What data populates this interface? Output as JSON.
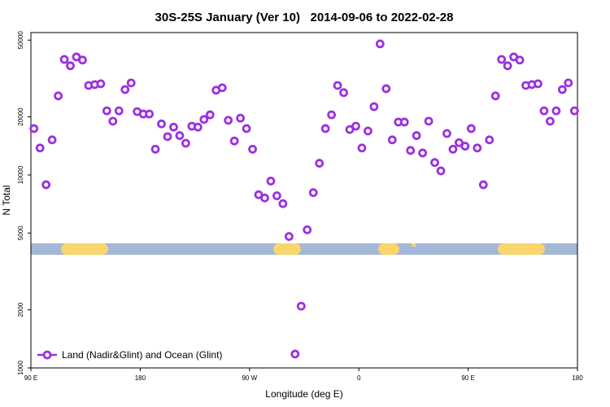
{
  "chart_data": {
    "type": "scatter",
    "title": "30S-25S January (Ver 10)   2014-09-06 to 2022-02-28",
    "xlabel": "Longitude (deg E)",
    "ylabel": "N Total",
    "ylog": true,
    "legend": "lower left",
    "xlim": [
      90,
      540
    ],
    "ylim": [
      1000,
      54700
    ],
    "xticks": [
      {
        "value": 90,
        "label": "90 E"
      },
      {
        "value": 180,
        "label": "180"
      },
      {
        "value": 270,
        "label": "90 W"
      },
      {
        "value": 360,
        "label": "0"
      },
      {
        "value": 450,
        "label": "90 E"
      },
      {
        "value": 540,
        "label": "180"
      }
    ],
    "yticks": [
      1000,
      2000,
      5000,
      10000,
      20000,
      50000
    ],
    "series": [
      {
        "name": "Land (Nadir&Glint) and Ocean (Glint)",
        "color": "#9b30e0",
        "x": [
          92.5,
          97.5,
          102.5,
          107.5,
          112.5,
          117.5,
          122.5,
          127.5,
          132.5,
          137.5,
          142.5,
          147.5,
          152.5,
          157.5,
          162.5,
          167.5,
          172.5,
          177.5,
          182.5,
          187.5,
          192.5,
          197.5,
          202.5,
          207.5,
          212.5,
          217.5,
          222.5,
          227.5,
          232.5,
          237.5,
          242.5,
          247.5,
          252.5,
          257.5,
          262.5,
          267.5,
          272.5,
          277.5,
          282.5,
          287.5,
          292.5,
          297.5,
          302.5,
          307.5,
          312.5,
          317.5,
          322.5,
          327.5,
          332.5,
          337.5,
          342.5,
          347.5,
          352.5,
          357.5,
          362.5,
          367.5,
          372.5,
          377.5,
          382.5,
          387.5,
          392.5,
          397.5,
          402.5,
          407.5,
          412.5,
          417.5,
          422.5,
          427.5,
          432.5,
          437.5,
          442.5,
          447.5,
          452.5,
          457.5,
          462.5,
          467.5,
          472.5,
          477.5,
          482.5,
          487.5,
          492.5,
          497.5,
          502.5,
          507.5,
          512.5,
          517.5,
          522.5,
          527.5,
          532.5,
          537.5
        ],
        "values": [
          17400,
          13800,
          8900,
          15200,
          25700,
          39700,
          36800,
          40900,
          39400,
          29100,
          29400,
          29700,
          21500,
          19000,
          21500,
          27700,
          30000,
          21300,
          20700,
          20700,
          13600,
          18400,
          15800,
          17700,
          16000,
          14600,
          17900,
          17700,
          19400,
          20500,
          27500,
          28300,
          19200,
          15000,
          19700,
          17400,
          13600,
          7900,
          7600,
          9300,
          7800,
          7100,
          4800,
          1180,
          2090,
          5200,
          8100,
          11500,
          17400,
          20500,
          29100,
          26700,
          17200,
          17900,
          13800,
          16900,
          22600,
          47800,
          28000,
          15200,
          18800,
          18800,
          13400,
          16000,
          13000,
          19000,
          11600,
          10500,
          16400,
          13600,
          14700,
          14100,
          17400,
          13800,
          8900,
          15200,
          25700,
          39700,
          36800,
          40900,
          39400,
          29100,
          29400,
          29700,
          21500,
          19000,
          21500,
          27700,
          30000,
          21500
        ]
      }
    ]
  }
}
